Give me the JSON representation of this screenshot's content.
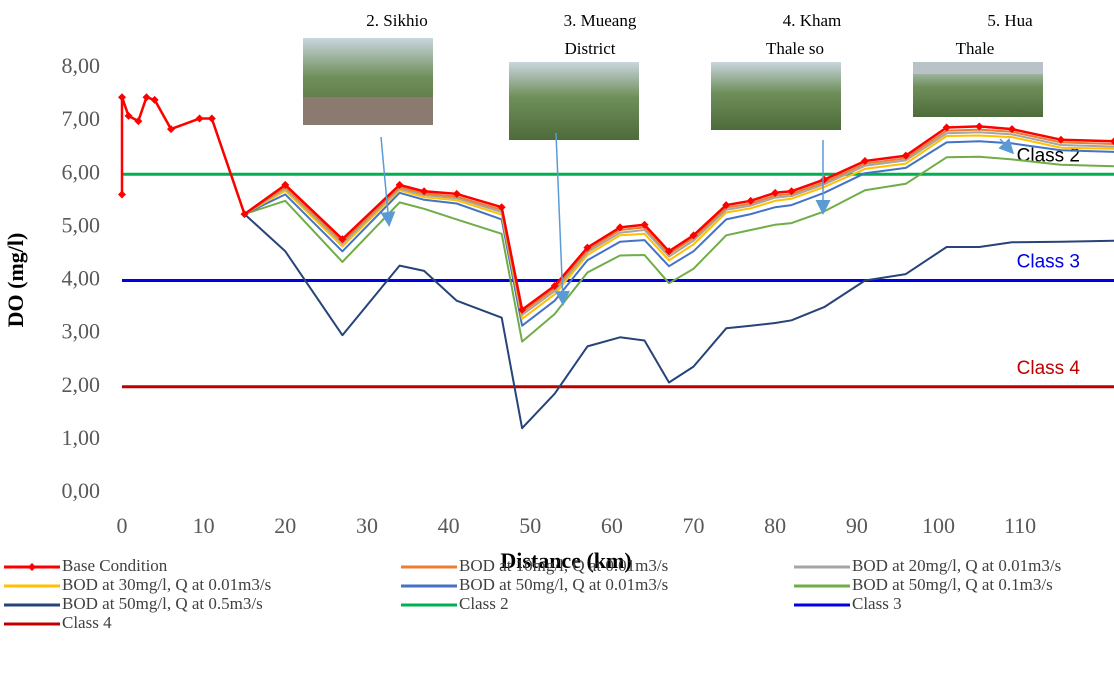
{
  "chart_data": {
    "type": "line",
    "x_label": "Distance (km)",
    "y_label": "DO (mg/l)",
    "x": [
      0,
      0,
      0.8,
      2,
      3,
      4,
      6,
      9.5,
      11,
      15,
      20,
      27,
      34,
      37,
      41,
      46.5,
      49,
      53,
      57,
      61,
      64,
      67,
      70,
      74,
      77,
      80,
      82,
      86,
      91,
      96,
      101,
      105,
      109,
      115,
      121.5
    ],
    "xlim": [
      0,
      121.5
    ],
    "xticks": [
      0,
      10,
      20,
      30,
      40,
      50,
      60,
      70,
      80,
      90,
      100,
      110
    ],
    "ylim": [
      0,
      8
    ],
    "yticks": [
      {
        "value": 0,
        "label": "0,00"
      },
      {
        "value": 1,
        "label": "1,00"
      },
      {
        "value": 2,
        "label": "2,00"
      },
      {
        "value": 3,
        "label": "3,00"
      },
      {
        "value": 4,
        "label": "4,00"
      },
      {
        "value": 5,
        "label": "5,00"
      },
      {
        "value": 6,
        "label": "6,00"
      },
      {
        "value": 7,
        "label": "7,00"
      },
      {
        "value": 8,
        "label": "8,00"
      }
    ],
    "grid": false,
    "series": [
      {
        "name": "Base Condition",
        "color": "#ff0000",
        "marker": "diamond",
        "values": [
          5.62,
          7.45,
          7.1,
          7.0,
          7.45,
          7.4,
          6.85,
          7.05,
          7.05,
          5.25,
          5.8,
          4.78,
          5.8,
          5.68,
          5.63,
          5.38,
          3.45,
          3.9,
          4.62,
          5.0,
          5.05,
          4.55,
          4.85,
          5.42,
          5.5,
          5.65,
          5.68,
          5.9,
          6.25,
          6.35,
          6.88,
          6.9,
          6.85,
          6.65,
          6.62
        ]
      },
      {
        "name": "BOD at 10mg/l,  Q at 0.01m3/s",
        "color": "#ed7d31",
        "values": [
          5.62,
          7.45,
          7.1,
          7.0,
          7.45,
          7.4,
          6.85,
          7.05,
          7.05,
          5.25,
          5.76,
          4.73,
          5.76,
          5.64,
          5.58,
          5.33,
          3.4,
          3.85,
          4.57,
          4.95,
          5.0,
          4.5,
          4.8,
          5.37,
          5.45,
          5.6,
          5.63,
          5.85,
          6.2,
          6.3,
          6.82,
          6.84,
          6.8,
          6.6,
          6.57
        ]
      },
      {
        "name": "BOD at 20mg/l,  Q at 0.01m3/s",
        "color": "#a5a5a5",
        "values": [
          5.62,
          7.45,
          7.1,
          7.0,
          7.45,
          7.4,
          6.85,
          7.05,
          7.05,
          5.25,
          5.73,
          4.69,
          5.73,
          5.61,
          5.55,
          5.29,
          3.35,
          3.8,
          4.53,
          4.9,
          4.95,
          4.45,
          4.75,
          5.33,
          5.41,
          5.56,
          5.59,
          5.81,
          6.16,
          6.26,
          6.77,
          6.79,
          6.75,
          6.55,
          6.52
        ]
      },
      {
        "name": "BOD at 30mg/l,  Q at 0.01m3/s",
        "color": "#ffc000",
        "values": [
          5.62,
          7.45,
          7.1,
          7.0,
          7.45,
          7.4,
          6.85,
          7.05,
          7.05,
          5.25,
          5.69,
          4.64,
          5.7,
          5.57,
          5.51,
          5.24,
          3.28,
          3.74,
          4.48,
          4.85,
          4.88,
          4.38,
          4.68,
          5.28,
          5.36,
          5.5,
          5.54,
          5.76,
          6.1,
          6.2,
          6.72,
          6.73,
          6.7,
          6.5,
          6.48
        ]
      },
      {
        "name": "BOD at 50mg/l,  Q at 0.01m3/s",
        "color": "#4472c4",
        "values": [
          5.62,
          7.45,
          7.1,
          7.0,
          7.45,
          7.4,
          6.85,
          7.05,
          7.05,
          5.25,
          5.62,
          4.55,
          5.65,
          5.52,
          5.45,
          5.15,
          3.15,
          3.62,
          4.38,
          4.73,
          4.76,
          4.27,
          4.55,
          5.15,
          5.25,
          5.38,
          5.42,
          5.65,
          6.02,
          6.12,
          6.6,
          6.62,
          6.58,
          6.45,
          6.42
        ]
      },
      {
        "name": "BOD at 50mg/l, Q at 0.1m3/s",
        "color": "#70ad47",
        "values": [
          5.62,
          7.45,
          7.1,
          7.0,
          7.45,
          7.4,
          6.85,
          7.05,
          7.05,
          5.25,
          5.5,
          4.35,
          5.47,
          5.35,
          5.15,
          4.88,
          2.85,
          3.37,
          4.15,
          4.47,
          4.48,
          3.95,
          4.22,
          4.85,
          4.95,
          5.05,
          5.08,
          5.3,
          5.7,
          5.82,
          6.32,
          6.33,
          6.28,
          6.18,
          6.15
        ]
      },
      {
        "name": "BOD at 50mg/l, Q at 0.5m3/s",
        "color": "#264478",
        "values": [
          5.62,
          7.45,
          7.1,
          7.0,
          7.45,
          7.4,
          6.85,
          7.05,
          7.05,
          5.25,
          4.55,
          2.97,
          4.28,
          4.18,
          3.62,
          3.3,
          1.22,
          1.87,
          2.76,
          2.93,
          2.87,
          2.08,
          2.38,
          3.1,
          3.15,
          3.2,
          3.25,
          3.5,
          4.0,
          4.12,
          4.63,
          4.63,
          4.72,
          4.73,
          4.75
        ]
      },
      {
        "name": "Class 2",
        "color": "#00b050",
        "label_color": "#000000",
        "x": [
          0,
          121.5
        ],
        "values": [
          6,
          6
        ]
      },
      {
        "name": "Class 3",
        "color": "#0000e6",
        "label_color": "#0000e6",
        "x": [
          0,
          121.5
        ],
        "values": [
          4,
          4
        ]
      },
      {
        "name": "Class 4",
        "color": "#c00000",
        "label_color": "#c00000",
        "x": [
          0,
          121.5
        ],
        "values": [
          2,
          2
        ]
      }
    ],
    "annotations": [
      [
        "2. Sikhio"
      ],
      [
        "3. Mueang",
        "District"
      ],
      [
        "4. Kham",
        "Thale so"
      ],
      [
        "5. Hua",
        "Thale"
      ]
    ]
  }
}
